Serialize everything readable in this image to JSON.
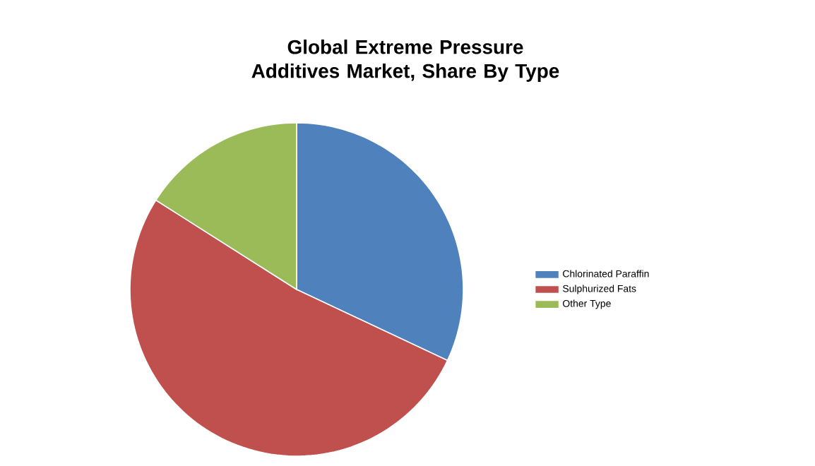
{
  "chart_data": {
    "type": "pie",
    "title": "Global Extreme Pressure Additives Market, Share By Type",
    "categories": [
      "Chlorinated Paraffin",
      "Sulphurized Fats",
      "Other Type"
    ],
    "values": [
      32,
      52,
      16
    ],
    "colors": [
      "#4f81bd",
      "#c0504d",
      "#9bbb59"
    ],
    "legend": "right"
  }
}
